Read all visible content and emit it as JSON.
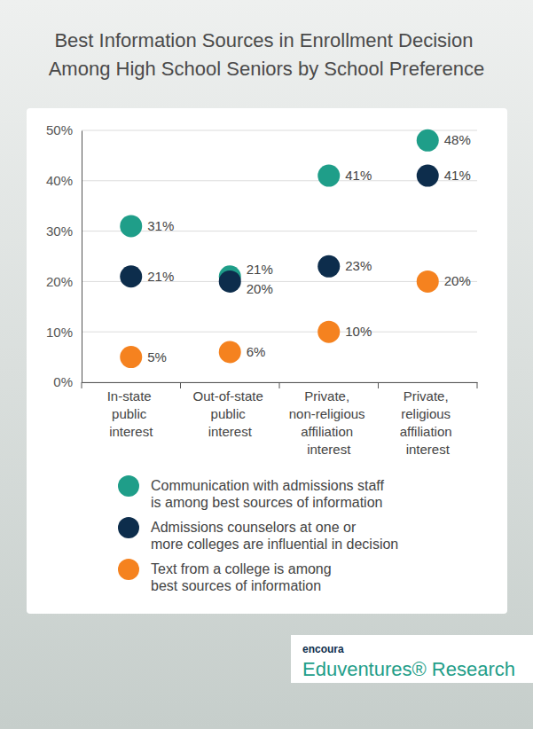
{
  "chart_data": {
    "type": "scatter",
    "title": "Best Information Sources in Enrollment Decision\nAmong High School Seniors by School Preference",
    "categories": [
      "In-state\npublic\ninterest",
      "Out-of-state\npublic\ninterest",
      "Private,\nnon-religious\naffiliation\ninterest",
      "Private,\nreligious\naffiliation\ninterest"
    ],
    "series": [
      {
        "name": "Communication with admissions staff\nis among best sources of information",
        "color": "#1f9e89",
        "marker": "circle",
        "values": [
          31,
          21,
          41,
          48
        ],
        "value_labels": [
          "31%",
          "21%",
          "41%",
          "48%"
        ]
      },
      {
        "name": "Admissions counselors at one or\nmore colleges are influential in decision",
        "color": "#0d2d4c",
        "marker": "circle",
        "values": [
          21,
          20,
          23,
          41
        ],
        "value_labels": [
          "21%",
          "20%",
          "23%",
          "41%"
        ]
      },
      {
        "name": "Text from a college is among\nbest sources of information",
        "color": "#f5821f",
        "marker": "circle",
        "values": [
          5,
          6,
          10,
          20
        ],
        "value_labels": [
          "5%",
          "6%",
          "10%",
          "20%"
        ]
      }
    ],
    "ylim": [
      0,
      50
    ],
    "yticks": [
      {
        "value": 0,
        "label": "0%"
      },
      {
        "value": 10,
        "label": "10%"
      },
      {
        "value": 20,
        "label": "20%"
      },
      {
        "value": 30,
        "label": "30%"
      },
      {
        "value": 40,
        "label": "40%"
      },
      {
        "value": 50,
        "label": "50%"
      }
    ],
    "grid": true,
    "data_labels": true,
    "legend": "bottom",
    "annotations": [
      "encoura",
      "Eduventures® Research"
    ]
  }
}
